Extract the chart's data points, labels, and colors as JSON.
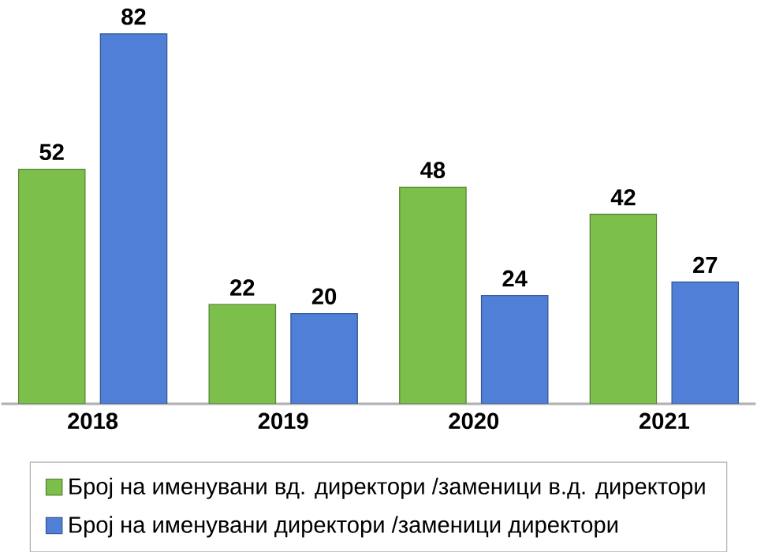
{
  "chart_data": {
    "type": "bar",
    "categories": [
      "2018",
      "2019",
      "2020",
      "2021"
    ],
    "series": [
      {
        "name": "Број на именувани вд. директори /заменици в.д. директори",
        "color": "#7cbf4a",
        "values": [
          52,
          22,
          48,
          42
        ]
      },
      {
        "name": "Број на именувани директори /заменици директори",
        "color": "#4f7fd6",
        "values": [
          82,
          20,
          24,
          27
        ]
      }
    ],
    "data_labels": true,
    "legend": "bottom"
  }
}
